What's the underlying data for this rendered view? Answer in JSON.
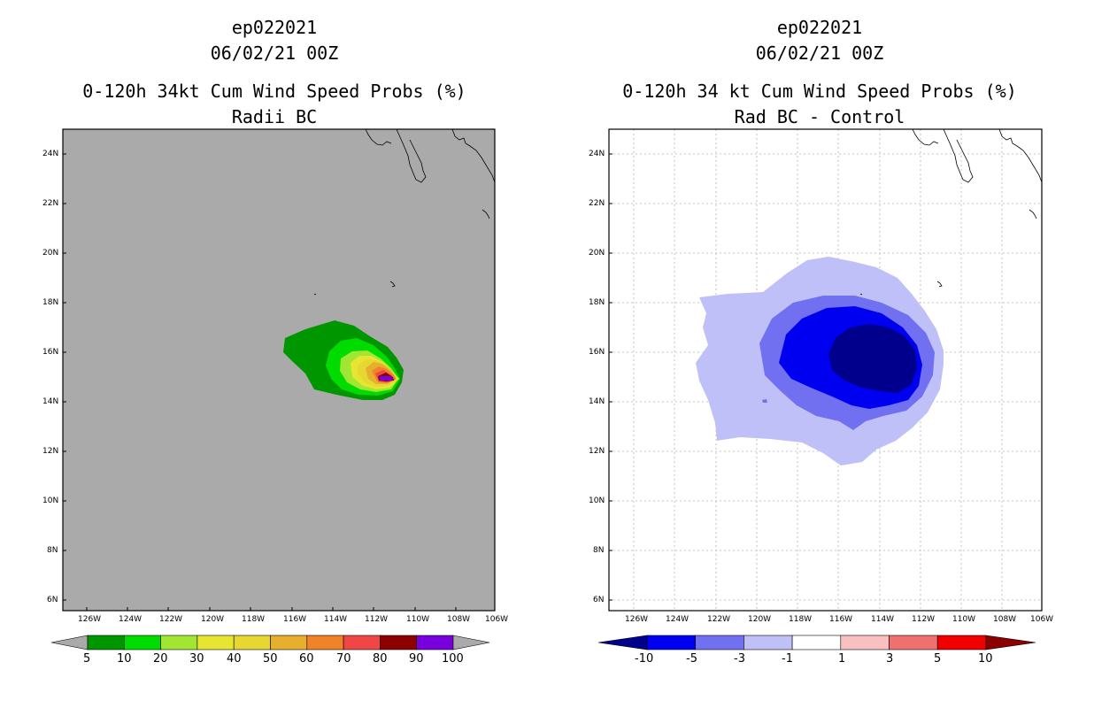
{
  "left_panel": {
    "titles": [
      "ep022021",
      "06/02/21 00Z",
      "0-120h 34kt Cum Wind Speed Probs (%)",
      "Radii BC"
    ],
    "colorbar_labels": [
      "5",
      "10",
      "20",
      "30",
      "40",
      "50",
      "60",
      "70",
      "80",
      "90",
      "100"
    ],
    "colorbar_colors": [
      "#009600",
      "#00dc00",
      "#a0e632",
      "#e6e632",
      "#e6d732",
      "#e6af2d",
      "#f08228",
      "#f04646",
      "#8c0000",
      "#7800dc"
    ],
    "background_color": "#aaaaaa"
  },
  "right_panel": {
    "titles": [
      "ep022021",
      "06/02/21 00Z",
      "0-120h 34 kt Cum Wind Speed Probs (%)",
      "Rad BC - Control"
    ],
    "colorbar_labels": [
      "-10",
      "-5",
      "-3",
      "-1",
      "1",
      "3",
      "5",
      "10"
    ],
    "colorbar_colors": [
      "#00008c",
      "#0000f0",
      "#7070f0",
      "#c0c0f8",
      "#ffffff",
      "#f8c0c0",
      "#f07070",
      "#f00000",
      "#8c0000"
    ]
  },
  "lat_labels": [
    "24N",
    "22N",
    "20N",
    "18N",
    "16N",
    "14N",
    "12N",
    "10N",
    "8N",
    "6N"
  ],
  "lon_labels": [
    "126W",
    "124W",
    "122W",
    "120W",
    "118W",
    "116W",
    "114W",
    "112W",
    "110W",
    "108W",
    "106W"
  ],
  "chart_data": [
    {
      "type": "heatmap",
      "title": "0-120h 34kt Cum Wind Speed Probs (%) - Radii BC",
      "storm": "ep022021",
      "valid_time": "06/02/21 00Z",
      "xlim_lon": [
        -127,
        -106
      ],
      "ylim_lat": [
        5.5,
        25
      ],
      "contour_levels": [
        5,
        10,
        20,
        30,
        40,
        50,
        60,
        70,
        80,
        90,
        100
      ],
      "max_probability_location": {
        "lon": -111.2,
        "lat": 15.0
      }
    },
    {
      "type": "heatmap",
      "title": "0-120h 34 kt Cum Wind Speed Probs (%) - Rad BC - Control",
      "storm": "ep022021",
      "valid_time": "06/02/21 00Z",
      "xlim_lon": [
        -127,
        -106
      ],
      "ylim_lat": [
        5.5,
        25
      ],
      "contour_levels": [
        -10,
        -5,
        -3,
        -1,
        1,
        3,
        5,
        10
      ],
      "min_difference_location": {
        "lon": -114.0,
        "lat": 15.8
      }
    }
  ]
}
